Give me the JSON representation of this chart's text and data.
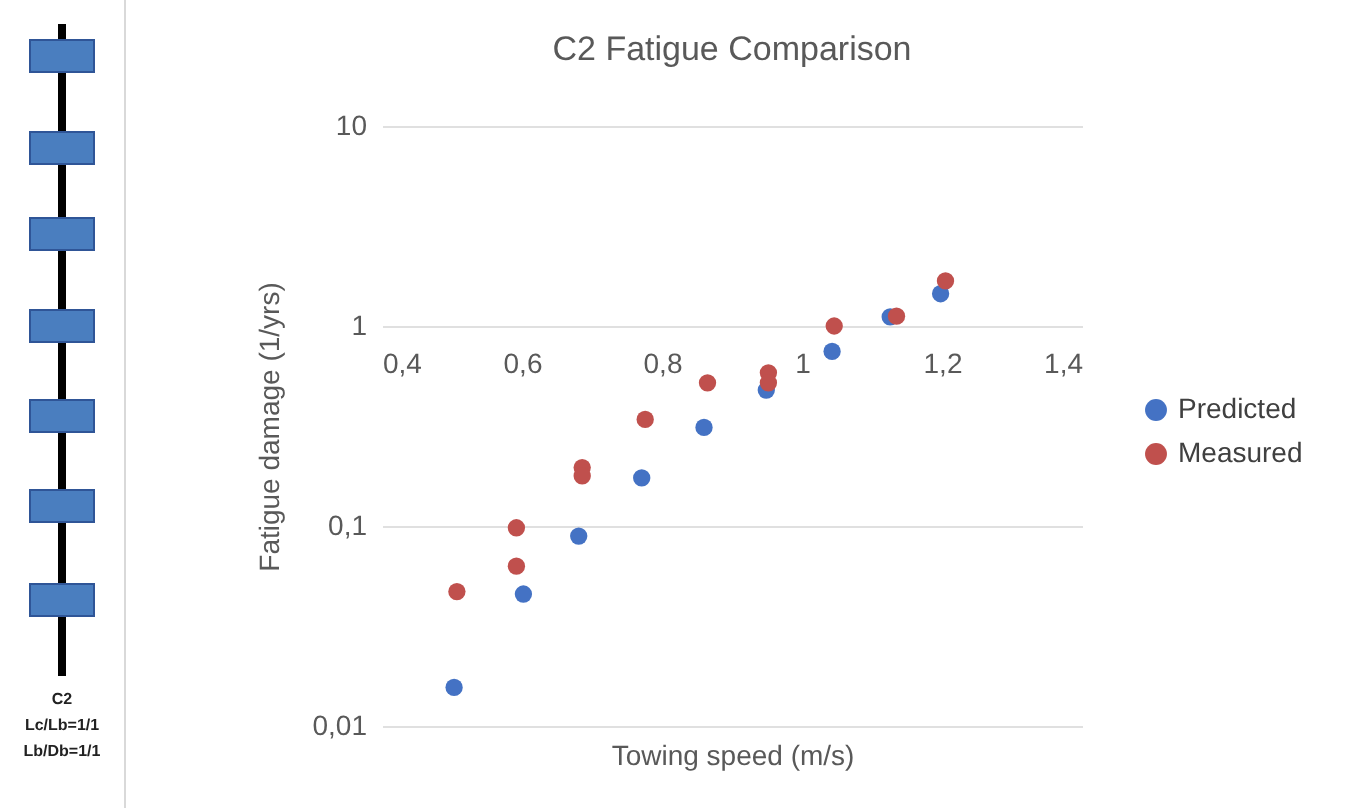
{
  "chart_data": {
    "type": "scatter",
    "title": "C2 Fatigue Comparison",
    "xlabel": "Towing speed (m/s)",
    "ylabel": "Fatigue damage (1/yrs)",
    "annotations": [
      "C2",
      "Lc/Lb=1/1",
      "Lb/Db=1/1"
    ],
    "series": [
      {
        "name": "Predicted",
        "color": "#4472c4",
        "x": [
          0.503,
          0.602,
          0.681,
          0.771,
          0.86,
          0.949,
          1.043,
          1.126,
          1.198
        ],
        "values": [
          0.0156,
          0.0457,
          0.089,
          0.174,
          0.311,
          0.478,
          0.746,
          1.11,
          1.45
        ]
      },
      {
        "name": "Measured",
        "color": "#c0504d",
        "x": [
          0.507,
          0.592,
          0.592,
          0.686,
          0.686,
          0.776,
          0.865,
          0.952,
          0.952,
          1.046,
          1.135,
          1.205
        ],
        "values": [
          0.047,
          0.063,
          0.098,
          0.196,
          0.178,
          0.341,
          0.52,
          0.583,
          0.52,
          1.0,
          1.12,
          1.68
        ]
      }
    ],
    "xlim": [
      0.4,
      1.4
    ],
    "xticks": [
      {
        "value": 0.4,
        "label": "0,4"
      },
      {
        "value": 0.6,
        "label": "0,6"
      },
      {
        "value": 0.8,
        "label": "0,8"
      },
      {
        "value": 1,
        "label": "1"
      },
      {
        "value": 1.2,
        "label": "1,2"
      },
      {
        "value": 1.4,
        "label": "1,4"
      }
    ],
    "ylim": [
      0.01,
      10
    ],
    "yticks": [
      {
        "value": 0.01,
        "label": "0,01"
      },
      {
        "value": 0.1,
        "label": "0,1"
      },
      {
        "value": 1,
        "label": "1"
      },
      {
        "value": 10,
        "label": "10"
      }
    ],
    "log": "y",
    "grid": "y",
    "legend": "right",
    "marker": "circle"
  }
}
